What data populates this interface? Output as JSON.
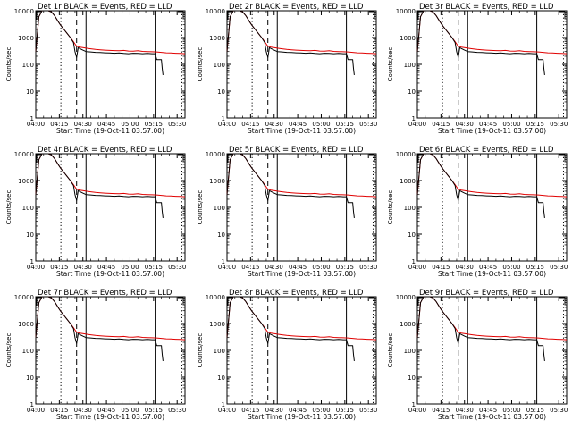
{
  "figure": {
    "x_axis_title": "Start Time (19-Oct-11 03:57:00)",
    "y_axis_title": "Counts/sec"
  },
  "colors": {
    "events": "#000000",
    "lld": "#e00000",
    "axis": "#000000"
  },
  "chart_data": [
    {
      "type": "line",
      "title": "Det 1r BLACK = Events, RED = LLD"
    },
    {
      "type": "line",
      "title": "Det 2r BLACK = Events, RED = LLD"
    },
    {
      "type": "line",
      "title": "Det 3r BLACK = Events, RED = LLD"
    },
    {
      "type": "line",
      "title": "Det 4r BLACK = Events, RED = LLD"
    },
    {
      "type": "line",
      "title": "Det 5r BLACK = Events, RED = LLD"
    },
    {
      "type": "line",
      "title": "Det 6r BLACK = Events, RED = LLD"
    },
    {
      "type": "line",
      "title": "Det 7r BLACK = Events, RED = LLD"
    },
    {
      "type": "line",
      "title": "Det 8r BLACK = Events, RED = LLD"
    },
    {
      "type": "line",
      "title": "Det 9r BLACK = Events, RED = LLD"
    }
  ],
  "shared_axes": {
    "xlabel": "Start Time (19-Oct-11 03:57:00)",
    "ylabel": "Counts/sec",
    "xlim_min": [
      240,
      335
    ],
    "ylim": [
      1,
      10000
    ],
    "yscale": "log",
    "xticks_min": [
      240,
      255,
      270,
      285,
      300,
      315,
      330
    ],
    "xtick_labels": [
      "04:00",
      "04:15",
      "04:30",
      "04:45",
      "05:00",
      "05:15",
      "05:30"
    ],
    "yticks": [
      1,
      10,
      100,
      1000,
      10000
    ],
    "ytick_labels": [
      "1",
      "10",
      "100",
      "1000",
      "10000"
    ],
    "vlines": [
      {
        "x": 256,
        "style": "dotted"
      },
      {
        "x": 266,
        "style": "dashed"
      },
      {
        "x": 272,
        "style": "solid"
      },
      {
        "x": 316,
        "style": "solid"
      },
      {
        "x": 333,
        "style": "dotted"
      }
    ],
    "series": [
      {
        "name": "LLD",
        "color": "red",
        "x": [
          240,
          242,
          244,
          246,
          248,
          250,
          252,
          254,
          256,
          258,
          260,
          262,
          264,
          266,
          268,
          270,
          272,
          275,
          278,
          281,
          284,
          287,
          290,
          293,
          296,
          299,
          302,
          305,
          308,
          311,
          314,
          317,
          320,
          323,
          326,
          329,
          332,
          335
        ],
        "y": [
          300,
          6000,
          10000,
          10000,
          10000,
          9000,
          6500,
          4200,
          2800,
          2000,
          1400,
          1000,
          700,
          470,
          440,
          420,
          400,
          380,
          360,
          350,
          340,
          330,
          325,
          320,
          330,
          315,
          310,
          320,
          305,
          300,
          295,
          290,
          280,
          270,
          265,
          260,
          255,
          250
        ]
      },
      {
        "name": "Events",
        "color": "black",
        "x": [
          240,
          242,
          244,
          246,
          248,
          250,
          252,
          254,
          256,
          258,
          260,
          262,
          264,
          265,
          266,
          267,
          268,
          270,
          272,
          275,
          278,
          281,
          284,
          287,
          290,
          293,
          296,
          299,
          302,
          305,
          308,
          311,
          314,
          316,
          317,
          318,
          319,
          320,
          320.5,
          321
        ],
        "y": [
          300,
          6000,
          10000,
          10000,
          10000,
          9000,
          6500,
          4200,
          2800,
          2000,
          1400,
          1000,
          650,
          300,
          180,
          420,
          390,
          340,
          300,
          290,
          280,
          275,
          270,
          265,
          260,
          265,
          255,
          250,
          260,
          255,
          250,
          255,
          250,
          250,
          150,
          150,
          150,
          150,
          70,
          40
        ]
      }
    ]
  }
}
